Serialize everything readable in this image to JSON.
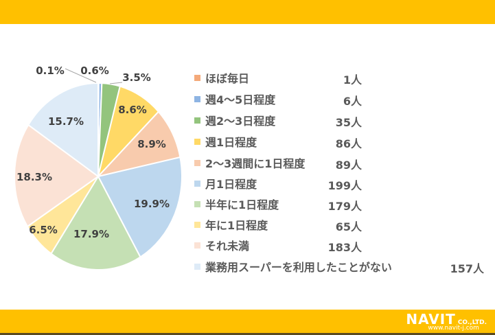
{
  "chart_data": {
    "type": "pie",
    "slices": [
      {
        "label": "ほぼ毎日",
        "count": "1人",
        "percent": 0.1,
        "percent_label": "0.1%",
        "color": "#F4A97A"
      },
      {
        "label": "週4～5日程度",
        "count": "6人",
        "percent": 0.6,
        "percent_label": "0.6%",
        "color": "#8EB4E3"
      },
      {
        "label": "週2～3日程度",
        "count": "35人",
        "percent": 3.5,
        "percent_label": "3.5%",
        "color": "#93C47D"
      },
      {
        "label": "週1日程度",
        "count": "86人",
        "percent": 8.6,
        "percent_label": "8.6%",
        "color": "#FFD966"
      },
      {
        "label": "2～3週間に1日程度",
        "count": "89人",
        "percent": 8.9,
        "percent_label": "8.9%",
        "color": "#F8CBAD"
      },
      {
        "label": "月1日程度",
        "count": "199人",
        "percent": 19.9,
        "percent_label": "19.9%",
        "color": "#BDD7EE"
      },
      {
        "label": "半年に1日程度",
        "count": "179人",
        "percent": 17.9,
        "percent_label": "17.9%",
        "color": "#C5E0B4"
      },
      {
        "label": "年に1日程度",
        "count": "65人",
        "percent": 6.5,
        "percent_label": "6.5%",
        "color": "#FFE699"
      },
      {
        "label": "それ未満",
        "count": "183人",
        "percent": 18.3,
        "percent_label": "18.3%",
        "color": "#FBE2D5"
      },
      {
        "label": "業務用スーパーを利用したことがない",
        "count": "157人",
        "percent": 15.7,
        "percent_label": "15.7%",
        "color": "#DEEBF7"
      }
    ],
    "legend_position": "right",
    "start": "top",
    "direction": "clockwise"
  },
  "branding": {
    "logo_text": "NAVIT CO.,LTD.",
    "url": "www.navit-j.com",
    "band_color": "#FFC000"
  }
}
